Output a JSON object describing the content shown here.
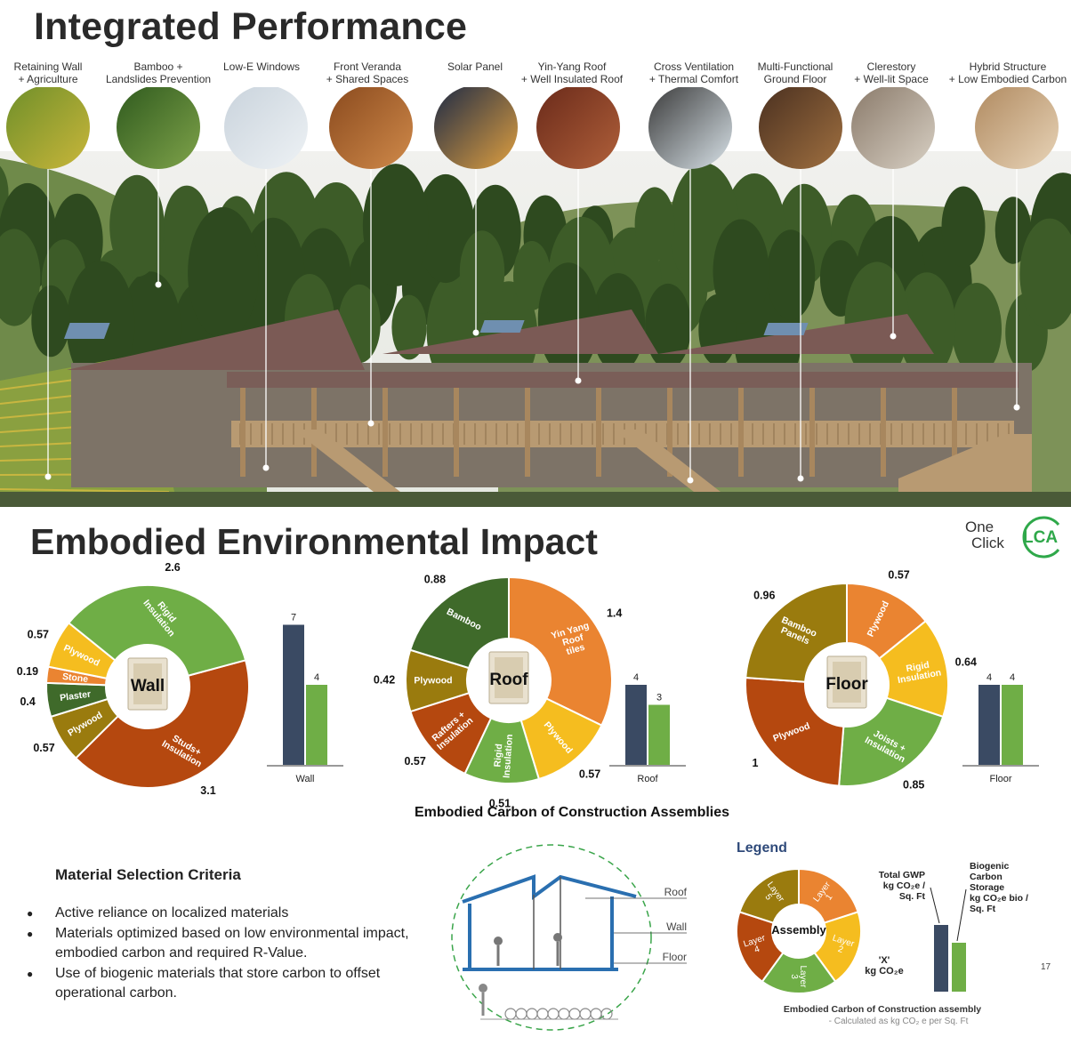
{
  "header": {
    "title": "Integrated Performance"
  },
  "features": [
    {
      "label": "Retaining Wall\n+ Agriculture",
      "icon": "terrace-icon",
      "colors": [
        "#6f8f2a",
        "#c9b63a"
      ]
    },
    {
      "label": "Bamboo +\nLandslides Prevention",
      "icon": "bamboo-icon",
      "colors": [
        "#2f5a1e",
        "#7fa34a"
      ]
    },
    {
      "label": "Low-E Windows",
      "icon": "window-frame-icon",
      "colors": [
        "#c9d3dc",
        "#eef2f5"
      ]
    },
    {
      "label": "Front Veranda\n+ Shared Spaces",
      "icon": "veranda-icon",
      "colors": [
        "#8a4a1e",
        "#d08a4a"
      ]
    },
    {
      "label": "Solar Panel",
      "icon": "solar-panel-icon",
      "colors": [
        "#1d2a45",
        "#e0a040"
      ]
    },
    {
      "label": "Yin-Yang Roof\n+ Well Insulated Roof",
      "icon": "roof-tiles-icon",
      "colors": [
        "#6a2a1a",
        "#b0603a"
      ]
    },
    {
      "label": "Cross Ventilation\n+ Thermal Comfort",
      "icon": "skylight-icon",
      "colors": [
        "#3a3a3a",
        "#d8e2e8"
      ]
    },
    {
      "label": "Multi-Functional\nGround Floor",
      "icon": "bicycle-icon",
      "colors": [
        "#4a3020",
        "#a07040"
      ]
    },
    {
      "label": "Clerestory\n+ Well-lit Space",
      "icon": "clerestory-icon",
      "colors": [
        "#8a7a6a",
        "#d8d0c4"
      ]
    },
    {
      "label": "Hybrid Structure\n+ Low Embodied Carbon",
      "icon": "timber-frame-icon",
      "colors": [
        "#b08a60",
        "#e8d4b8"
      ]
    }
  ],
  "section2": {
    "title": "Embodied Environmental Impact",
    "logo": {
      "line1": "One",
      "line2": "Click",
      "mark": "LCA"
    }
  },
  "colors": {
    "red_brown": "#b5480f",
    "olive": "#9a7b0e",
    "dark_green": "#3f6a2a",
    "orange": "#ea8431",
    "yellow": "#f5bd1f",
    "green": "#6fae46",
    "bar_navy": "#3a4a63",
    "bar_green": "#6fae46"
  },
  "chart_data": [
    {
      "type": "pie",
      "center_label": "Wall",
      "slices": [
        {
          "label": "Studs+\nInsulation",
          "value": 3.1,
          "value_label": "3.1",
          "color": "red_brown"
        },
        {
          "label": "Plywood",
          "value": 0.57,
          "value_label": "0.57",
          "color": "olive"
        },
        {
          "label": "Plaster",
          "value": 0.4,
          "value_label": "0.4",
          "color": "dark_green"
        },
        {
          "label": "Stone",
          "value": 0.19,
          "value_label": "0.19",
          "color": "orange"
        },
        {
          "label": "Plywood",
          "value": 0.57,
          "value_label": "0.57",
          "color": "yellow"
        },
        {
          "label": "Rigid\nInsulation",
          "value": 2.6,
          "value_label": "2.6",
          "color": "green"
        }
      ],
      "bars": {
        "category": "Wall",
        "values": [
          7,
          4
        ],
        "labels": [
          "7",
          "4"
        ]
      }
    },
    {
      "type": "pie",
      "center_label": "Roof",
      "slices": [
        {
          "label": "Yin Yang\nRoof\ntiles",
          "value": 1.4,
          "value_label": "1.4",
          "color": "orange"
        },
        {
          "label": "Plywood",
          "value": 0.57,
          "value_label": "0.57",
          "color": "yellow"
        },
        {
          "label": "Rigid\nInsulation",
          "value": 0.51,
          "value_label": "0.51",
          "color": "green"
        },
        {
          "label": "Rafters +\nInsulation",
          "value": 0.57,
          "value_label": "0.57",
          "color": "red_brown"
        },
        {
          "label": "Plywood",
          "value": 0.42,
          "value_label": "0.42",
          "color": "olive"
        },
        {
          "label": "Bamboo",
          "value": 0.88,
          "value_label": "0.88",
          "color": "dark_green"
        }
      ],
      "bars": {
        "category": "Roof",
        "values": [
          4,
          3
        ],
        "labels": [
          "4",
          "3"
        ]
      }
    },
    {
      "type": "pie",
      "center_label": "Floor",
      "slices": [
        {
          "label": "Plywood",
          "value": 0.57,
          "value_label": "0.57",
          "color": "orange"
        },
        {
          "label": "Rigid\nInsulation",
          "value": 0.64,
          "value_label": "0.64",
          "color": "yellow"
        },
        {
          "label": "Joists +\nInsulation",
          "value": 0.85,
          "value_label": "0.85",
          "color": "green"
        },
        {
          "label": "Plywood",
          "value": 1,
          "value_label": "1",
          "color": "red_brown"
        },
        {
          "label": "Bamboo\nPanels",
          "value": 0.96,
          "value_label": "0.96",
          "color": "olive"
        }
      ],
      "bars": {
        "category": "Floor",
        "values": [
          4,
          4
        ],
        "labels": [
          "4",
          "4"
        ]
      }
    }
  ],
  "charts_caption": "Embodied Carbon of Construction Assemblies",
  "criteria": {
    "title": "Material Selection Criteria",
    "items": [
      "Active reliance on localized materials",
      "Materials optimized based on low environmental impact, embodied carbon and required R-Value.",
      "Use of biogenic materials that store carbon to offset operational carbon."
    ]
  },
  "section_diagram": {
    "labels": [
      "Roof",
      "Wall",
      "Floor"
    ]
  },
  "legend": {
    "title": "Legend",
    "center": "Assembly",
    "layers": [
      "Layer\n1",
      "Layer\n2",
      "Layer\n3",
      "Layer\n4",
      "Layer\n5"
    ],
    "value_label": "'X'\nkg CO₂e",
    "gwp_label": "Total GWP\nkg CO₂e /\nSq. Ft",
    "bio_label": "Biogenic\nCarbon\nStorage\nkg CO₂e bio /\nSq. Ft",
    "caption": "Embodied Carbon of Construction assembly",
    "subcaption": "- Calculated as kg CO₂ e per Sq. Ft"
  },
  "page_number": "17"
}
